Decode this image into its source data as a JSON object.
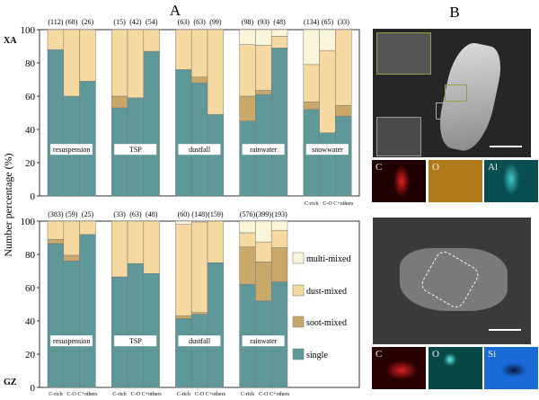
{
  "panel_labels": {
    "a": "A",
    "b": "B"
  },
  "y_axis_label": "Number percentage (%)",
  "colors": {
    "single": "#5f9898",
    "soot-mixed": "#c9a86a",
    "dust-mixed": "#f5d9a0",
    "multi-mixed": "#faf5d8"
  },
  "legend": [
    "multi-mixed",
    "dust-mixed",
    "soot-mixed",
    "single"
  ],
  "chart_data": [
    {
      "type": "bar",
      "stacked": true,
      "site": "XA",
      "ylim": [
        0,
        100
      ],
      "yticks": [
        "0",
        "20",
        "40",
        "60",
        "80",
        "100"
      ],
      "bar_labels": [
        "C-rich",
        "C-O",
        "C+others"
      ],
      "groups": [
        {
          "name": "resuspension",
          "counts": [
            "(112)",
            "(68)",
            "(26)"
          ],
          "single": [
            88,
            60,
            69
          ],
          "soot-mixed": [
            0,
            0,
            0
          ],
          "dust-mixed": [
            12,
            40,
            31
          ],
          "multi-mixed": [
            0,
            0,
            0
          ]
        },
        {
          "name": "TSP",
          "counts": [
            "(15)",
            "(42)",
            "(54)"
          ],
          "single": [
            53,
            59,
            87
          ],
          "soot-mixed": [
            7,
            0,
            0
          ],
          "dust-mixed": [
            40,
            41,
            13
          ],
          "multi-mixed": [
            0,
            0,
            0
          ]
        },
        {
          "name": "dustfall",
          "counts": [
            "(63)",
            "(63)",
            "(99)"
          ],
          "single": [
            76,
            68,
            49
          ],
          "soot-mixed": [
            0,
            3.5,
            0
          ],
          "dust-mixed": [
            24,
            28.5,
            51
          ],
          "multi-mixed": [
            0,
            0,
            0
          ]
        },
        {
          "name": "rainwater",
          "counts": [
            "(98)",
            "(93)",
            "(48)"
          ],
          "single": [
            45,
            61,
            89
          ],
          "soot-mixed": [
            15,
            2.5,
            0
          ],
          "dust-mixed": [
            31,
            27,
            7
          ],
          "multi-mixed": [
            9,
            9.5,
            4
          ]
        },
        {
          "name": "snowwater",
          "counts": [
            "(134)",
            "(65)",
            "(33)"
          ],
          "single": [
            52,
            38,
            48
          ],
          "soot-mixed": [
            4.5,
            0,
            6.5
          ],
          "dust-mixed": [
            22.5,
            49.5,
            45.5
          ],
          "multi-mixed": [
            21,
            12.5,
            0
          ]
        }
      ]
    },
    {
      "type": "bar",
      "stacked": true,
      "site": "GZ",
      "ylim": [
        0,
        100
      ],
      "yticks": [
        "0",
        "20",
        "40",
        "60",
        "80",
        "100"
      ],
      "bar_labels": [
        "C-rich",
        "C-O",
        "C+others"
      ],
      "groups": [
        {
          "name": "resuspension",
          "counts": [
            "(383)",
            "(59)",
            "(25)"
          ],
          "single": [
            86.5,
            76,
            92
          ],
          "soot-mixed": [
            2.5,
            3.5,
            0
          ],
          "dust-mixed": [
            11,
            20.5,
            8
          ],
          "multi-mixed": [
            0,
            0,
            0
          ]
        },
        {
          "name": "TSP",
          "counts": [
            "(33)",
            "(63)",
            "(48)"
          ],
          "single": [
            66.5,
            74.5,
            68.5
          ],
          "soot-mixed": [
            0,
            0,
            0
          ],
          "dust-mixed": [
            33.5,
            25.5,
            31.5
          ],
          "multi-mixed": [
            0,
            0,
            0
          ]
        },
        {
          "name": "dustfall",
          "counts": [
            "(60)",
            "(148)",
            "(159)"
          ],
          "single": [
            41.5,
            44,
            75
          ],
          "soot-mixed": [
            1.5,
            1,
            0
          ],
          "dust-mixed": [
            55,
            54.5,
            25
          ],
          "multi-mixed": [
            2,
            0.5,
            0
          ]
        },
        {
          "name": "rainwater",
          "counts": [
            "(576)",
            "(399)",
            "(193)"
          ],
          "single": [
            62,
            52,
            63.5
          ],
          "soot-mixed": [
            22.5,
            23.5,
            20.5
          ],
          "dust-mixed": [
            8.5,
            12,
            10.5
          ],
          "multi-mixed": [
            7,
            12.5,
            5.5
          ]
        }
      ]
    }
  ],
  "images": {
    "xa_maps": [
      "C",
      "O",
      "Al"
    ],
    "gz_maps": [
      "C",
      "O",
      "Si"
    ]
  }
}
